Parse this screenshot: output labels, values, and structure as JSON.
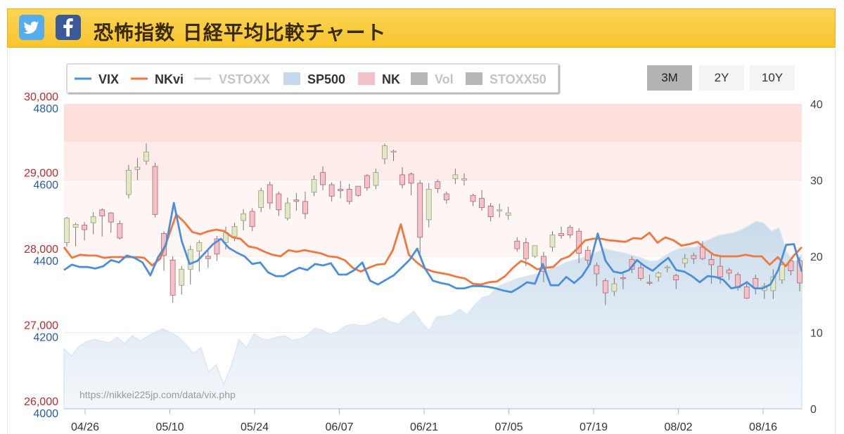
{
  "header": {
    "title": "恐怖指数 日経平均比較チャート",
    "twitter_icon": "twitter-icon",
    "facebook_icon": "facebook-icon"
  },
  "range_buttons": [
    {
      "label": "3M",
      "active": true
    },
    {
      "label": "2Y",
      "active": false
    },
    {
      "label": "10Y",
      "active": false
    }
  ],
  "watermark": "https://nikkei225jp.com/data/vix.php",
  "colors": {
    "vix": "#4a8fdc",
    "nkvi": "#f2773f",
    "vstoxx": "#c8d4e0",
    "sp500": "#c5d9ea",
    "nk_up": "#e0e8c8",
    "nk_down": "#f3c1c8",
    "nk_axis": "#c0282d",
    "sp_axis": "#2a5d9e"
  },
  "chart_data": {
    "type": "line",
    "legend": [
      {
        "name": "VIX",
        "type": "line",
        "color": "#4a8fdc",
        "enabled": true
      },
      {
        "name": "NKvi",
        "type": "line",
        "color": "#f2773f",
        "enabled": true
      },
      {
        "name": "VSTOXX",
        "type": "line",
        "color": "#c8d4e0",
        "enabled": false
      },
      {
        "name": "SP500",
        "type": "area",
        "color": "#c5d9ea",
        "enabled": true
      },
      {
        "name": "NK",
        "type": "box",
        "color": "#f3c1c8",
        "enabled": true
      },
      {
        "name": "Vol",
        "type": "box",
        "color": "#b8b8b8",
        "enabled": false
      },
      {
        "name": "STOXX50",
        "type": "box",
        "color": "#b8b8b8",
        "enabled": false
      }
    ],
    "x_ticks": [
      "04/26",
      "05/10",
      "05/24",
      "06/07",
      "06/21",
      "07/05",
      "07/19",
      "08/02",
      "08/16"
    ],
    "nk_axis": {
      "ticks": [
        "30,000",
        "29,000",
        "28,000",
        "27,000",
        "26,000"
      ],
      "range": [
        26000,
        30000
      ]
    },
    "sp_axis": {
      "ticks": [
        "4800",
        "4600",
        "4400",
        "4200",
        "4000"
      ],
      "range": [
        4000,
        4800
      ]
    },
    "vol_axis": {
      "ticks": [
        "40",
        "30",
        "20",
        "10",
        "0"
      ],
      "range": [
        0,
        40
      ]
    },
    "bands": [
      {
        "from": 35,
        "to": 40,
        "color": "#fde0dc"
      },
      {
        "from": 30,
        "to": 35,
        "color": "#fdecea"
      },
      {
        "from": 20,
        "to": 30,
        "color": "#fef6f5"
      }
    ],
    "series": [
      {
        "name": "VIX",
        "values": [
          18.2,
          18.9,
          18.6,
          18.6,
          18.4,
          18.7,
          19.5,
          19.2,
          20.1,
          19.8,
          19.2,
          17.5,
          19.9,
          21.5,
          27.0,
          22.0,
          19.0,
          19.4,
          20.5,
          21.6,
          22.3,
          21.1,
          20.5,
          20.0,
          19.0,
          19.2,
          17.9,
          17.4,
          17.4,
          18.0,
          18.5,
          18.2,
          19.0,
          18.8,
          19.1,
          17.6,
          17.6,
          18.2,
          19.2,
          16.8,
          16.3,
          16.9,
          17.5,
          18.5,
          19.5,
          21.0,
          18.4,
          16.8,
          16.5,
          16.3,
          15.8,
          15.8,
          16.1,
          16.1,
          16.0,
          15.8,
          15.5,
          15.3,
          15.9,
          16.6,
          16.4,
          19.0,
          16.2,
          16.2,
          17.3,
          16.5,
          17.4,
          19.0,
          23.0,
          19.4,
          18.0,
          17.8,
          18.2,
          19.5,
          18.7,
          18.1,
          19.0,
          19.8,
          18.2,
          18.0,
          17.4,
          16.6,
          17.4,
          17.3,
          16.9,
          15.8,
          16.0,
          16.6,
          15.8,
          15.8,
          16.3,
          18.2,
          21.5,
          21.6,
          18.0
        ]
      },
      {
        "name": "NKvi",
        "values": [
          21.2,
          19.8,
          20.2,
          20.1,
          20.1,
          19.8,
          19.9,
          19.9,
          19.9,
          19.9,
          19.8,
          18.8,
          19.7,
          22.5,
          25.5,
          24.5,
          23.2,
          22.9,
          23.3,
          23.5,
          23.3,
          22.5,
          22.3,
          21.3,
          21.1,
          20.6,
          20.2,
          20.0,
          20.8,
          20.6,
          20.8,
          20.6,
          20.4,
          20.0,
          19.9,
          19.5,
          18.5,
          18.0,
          18.5,
          18.9,
          19.0,
          20.8,
          24.2,
          20.2,
          19.2,
          18.4,
          18.0,
          17.8,
          17.6,
          17.3,
          17.1,
          16.4,
          16.3,
          16.6,
          16.7,
          17.4,
          18.5,
          19.4,
          19.0,
          18.3,
          18.5,
          18.6,
          19.6,
          20.0,
          21.0,
          22.1,
          22.3,
          22.3,
          22.1,
          22.0,
          21.9,
          22.4,
          22.3,
          23.1,
          21.8,
          22.5,
          22.1,
          21.4,
          21.6,
          21.9,
          21.0,
          20.2,
          20.0,
          20.0,
          20.0,
          20.2,
          20.0,
          20.0,
          18.9,
          19.9,
          18.7,
          20.1,
          21.2
        ]
      },
      {
        "name": "SP500",
        "values": [
          4157,
          4138,
          4164,
          4176,
          4182,
          4177,
          4173,
          4188,
          4171,
          4192,
          4178,
          4190,
          4201,
          4210,
          4201,
          4189,
          4169,
          4145,
          4160,
          4096,
          4115,
          4063,
          4113,
          4182,
          4160,
          4197,
          4183,
          4181,
          4188,
          4192,
          4180,
          4183,
          4193,
          4211,
          4206,
          4195,
          4202,
          4217,
          4222,
          4218,
          4220,
          4230,
          4239,
          4227,
          4222,
          4241,
          4256,
          4227,
          4205,
          4241,
          4243,
          4246,
          4261,
          4247,
          4272,
          4292,
          4298,
          4320,
          4329,
          4337,
          4343,
          4348,
          4353,
          4358,
          4369,
          4374,
          4384,
          4390,
          4395,
          4403,
          4410,
          4420,
          4415,
          4411,
          4407,
          4401,
          4395,
          4387,
          4388,
          4401,
          4413,
          4421,
          4423,
          4423,
          4437,
          4445,
          4455,
          4458,
          4462,
          4469,
          4480,
          4492,
          4487,
          4466,
          4475,
          4411,
          4385,
          4404
        ]
      }
    ],
    "nk_candles": [
      [
        28180,
        28500,
        28130,
        28520
      ],
      [
        28380,
        28420,
        28130,
        28440
      ],
      [
        28410,
        28350,
        28210,
        28450
      ],
      [
        28440,
        28520,
        28290,
        28580
      ],
      [
        28610,
        28530,
        28260,
        28630
      ],
      [
        28570,
        28450,
        28310,
        28580
      ],
      [
        28430,
        28240,
        28220,
        28470
      ],
      [
        28810,
        29130,
        28760,
        29200
      ],
      [
        29140,
        29170,
        29000,
        29290
      ],
      [
        29250,
        29370,
        29200,
        29480
      ],
      [
        29180,
        28550,
        28510,
        29230
      ],
      [
        28300,
        28010,
        27810,
        28330
      ],
      [
        27950,
        27490,
        27390,
        28000
      ],
      [
        27620,
        27830,
        27500,
        27870
      ],
      [
        27830,
        28090,
        27630,
        28140
      ],
      [
        28070,
        28180,
        27800,
        28210
      ],
      [
        28000,
        27970,
        27850,
        28100
      ],
      [
        28230,
        28030,
        27940,
        28270
      ],
      [
        28180,
        28310,
        28090,
        28390
      ],
      [
        28260,
        28390,
        28200,
        28440
      ],
      [
        28470,
        28560,
        28340,
        28620
      ],
      [
        28590,
        28390,
        28330,
        28630
      ],
      [
        28640,
        28860,
        28580,
        28900
      ],
      [
        28940,
        28700,
        28620,
        28980
      ],
      [
        28820,
        28610,
        28530,
        28850
      ],
      [
        28500,
        28700,
        28470,
        28770
      ],
      [
        28740,
        28720,
        28600,
        28830
      ],
      [
        28720,
        28560,
        28490,
        28850
      ],
      [
        28840,
        29010,
        28790,
        29060
      ],
      [
        29100,
        28940,
        28870,
        29180
      ],
      [
        28940,
        28790,
        28720,
        28970
      ],
      [
        28880,
        28860,
        28760,
        28990
      ],
      [
        28880,
        28720,
        28680,
        28950
      ],
      [
        28920,
        28800,
        28780,
        28920
      ],
      [
        29060,
        28900,
        28860,
        29080
      ],
      [
        28930,
        29100,
        28880,
        29150
      ],
      [
        29280,
        29450,
        29210,
        29480
      ],
      [
        29380,
        29380,
        29250,
        29400
      ],
      [
        29070,
        28940,
        28890,
        29170
      ],
      [
        29080,
        28960,
        28800,
        29100
      ],
      [
        28960,
        28250,
        28010,
        29000
      ],
      [
        28480,
        28880,
        28380,
        28960
      ],
      [
        28980,
        28890,
        28830,
        29010
      ],
      [
        28820,
        28740,
        28690,
        28850
      ],
      [
        29020,
        29070,
        28950,
        29150
      ],
      [
        29000,
        29020,
        28930,
        29090
      ],
      [
        28800,
        28720,
        28660,
        28820
      ],
      [
        28760,
        28640,
        28600,
        28870
      ],
      [
        28660,
        28520,
        28460,
        28700
      ],
      [
        28600,
        28610,
        28510,
        28690
      ],
      [
        28540,
        28570,
        28480,
        28650
      ],
      [
        28200,
        28100,
        28060,
        28250
      ],
      [
        28180,
        27970,
        27870,
        28240
      ],
      [
        28000,
        28140,
        27980,
        28130
      ],
      [
        28000,
        27800,
        27660,
        28060
      ],
      [
        28120,
        28280,
        28060,
        28330
      ],
      [
        28300,
        28270,
        28230,
        28390
      ],
      [
        28380,
        28280,
        28240,
        28410
      ],
      [
        28330,
        28040,
        27910,
        28370
      ],
      [
        28080,
        27950,
        27890,
        28130
      ],
      [
        27880,
        27770,
        27610,
        27920
      ],
      [
        27680,
        27520,
        27360,
        27710
      ],
      [
        27540,
        27640,
        27480,
        27720
      ],
      [
        27720,
        27710,
        27570,
        27770
      ],
      [
        27960,
        27830,
        27780,
        28000
      ],
      [
        27850,
        27710,
        27680,
        27900
      ],
      [
        27660,
        27650,
        27620,
        27760
      ],
      [
        27730,
        27780,
        27670,
        27800
      ],
      [
        27860,
        27860,
        27790,
        27880
      ],
      [
        27750,
        27690,
        27570,
        27770
      ],
      [
        27910,
        27970,
        27850,
        28030
      ],
      [
        28010,
        27970,
        27900,
        28050
      ],
      [
        28120,
        27970,
        27950,
        28200
      ],
      [
        27960,
        27890,
        27640,
        28050
      ],
      [
        27870,
        27730,
        27640,
        28000
      ],
      [
        27820,
        27780,
        27690,
        27850
      ],
      [
        27760,
        27590,
        27550,
        27790
      ],
      [
        27600,
        27450,
        27440,
        27680
      ],
      [
        27710,
        27580,
        27500,
        27760
      ],
      [
        27550,
        27610,
        27440,
        27650
      ],
      [
        27550,
        27730,
        27440,
        27830
      ],
      [
        27690,
        27890,
        27640,
        27900
      ],
      [
        27940,
        27810,
        27750,
        27960
      ],
      [
        27940,
        27650,
        27540,
        27990
      ]
    ]
  }
}
